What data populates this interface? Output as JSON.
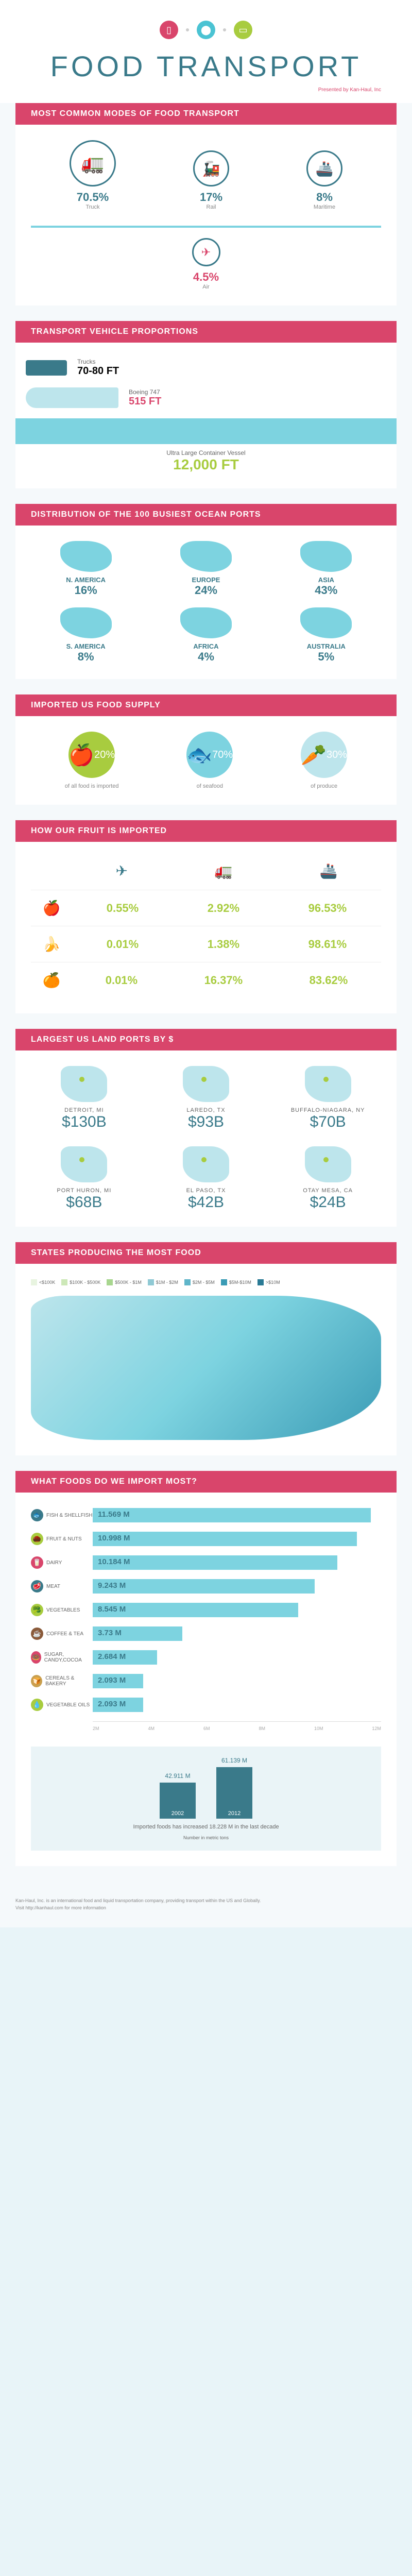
{
  "header": {
    "title": "FOOD TRANSPORT",
    "presented_by": "Presented by Kan-Haul, Inc",
    "icons": [
      "milk",
      "pin",
      "truck"
    ]
  },
  "modes": {
    "title": "MOST COMMON MODES OF FOOD TRANSPORT",
    "items": [
      {
        "pct": "70.5%",
        "label": "Truck",
        "size": "lg",
        "glyph": "🚛"
      },
      {
        "pct": "17%",
        "label": "Rail",
        "size": "md",
        "glyph": "🚂"
      },
      {
        "pct": "8%",
        "label": "Maritime",
        "size": "md",
        "glyph": "🚢"
      }
    ],
    "air": {
      "pct": "4.5%",
      "label": "Air",
      "glyph": "✈"
    }
  },
  "proportions": {
    "title": "TRANSPORT VEHICLE PROPORTIONS",
    "items": [
      {
        "name": "Trucks",
        "value": "70-80 FT",
        "color": "#3a7a8a"
      },
      {
        "name": "Boeing 747",
        "value": "515 FT",
        "color": "#d9456b"
      },
      {
        "name": "Ultra Large Container Vessel",
        "value": "12,000 FT",
        "color": "#a8cc3f"
      }
    ]
  },
  "ocean_ports": {
    "title": "DISTRIBUTION OF THE 100 BUSIEST OCEAN PORTS",
    "regions": [
      {
        "name": "N. AMERICA",
        "pct": "16%"
      },
      {
        "name": "EUROPE",
        "pct": "24%"
      },
      {
        "name": "ASIA",
        "pct": "43%"
      },
      {
        "name": "S. AMERICA",
        "pct": "8%"
      },
      {
        "name": "AFRICA",
        "pct": "4%"
      },
      {
        "name": "AUSTRALIA",
        "pct": "5%"
      }
    ]
  },
  "supply": {
    "title": "IMPORTED US FOOD SUPPLY",
    "items": [
      {
        "pct": "20%",
        "label": "of all food is imported",
        "color": "#a8cc3f",
        "glyph": "🍎"
      },
      {
        "pct": "70%",
        "label": "of seafood",
        "color": "#7dd3e0",
        "glyph": "🐟"
      },
      {
        "pct": "30%",
        "label": "of produce",
        "color": "#bde5ec",
        "glyph": "🥕"
      }
    ]
  },
  "fruit": {
    "title": "HOW OUR FRUIT IS IMPORTED",
    "modes": [
      "✈",
      "🚛",
      "🚢"
    ],
    "rows": [
      {
        "icon": "🍎",
        "values": [
          "0.55%",
          "2.92%",
          "96.53%"
        ]
      },
      {
        "icon": "🍌",
        "values": [
          "0.01%",
          "1.38%",
          "98.61%"
        ]
      },
      {
        "icon": "🍊",
        "values": [
          "0.01%",
          "16.37%",
          "83.62%"
        ]
      }
    ]
  },
  "land_ports": {
    "title": "LARGEST US LAND PORTS BY $",
    "items": [
      {
        "name": "DETROIT, MI",
        "value": "$130B"
      },
      {
        "name": "LAREDO, TX",
        "value": "$93B"
      },
      {
        "name": "BUFFALO-NIAGARA, NY",
        "value": "$70B"
      },
      {
        "name": "PORT HURON, MI",
        "value": "$68B"
      },
      {
        "name": "EL PASO, TX",
        "value": "$42B"
      },
      {
        "name": "OTAY MESA, CA",
        "value": "$24B"
      }
    ]
  },
  "states": {
    "title": "STATES PRODUCING THE MOST FOOD",
    "legend": [
      {
        "label": "<$100K",
        "color": "#e8f4e0"
      },
      {
        "label": "$100K - $500K",
        "color": "#cde8b8"
      },
      {
        "label": "$500K - $1M",
        "color": "#a8d68f"
      },
      {
        "label": "$1M - $2M",
        "color": "#8fc9d4"
      },
      {
        "label": "$2M - $5M",
        "color": "#5fb5c9"
      },
      {
        "label": "$5M-$10M",
        "color": "#3a9bb5"
      },
      {
        "label": ">$10M",
        "color": "#2a7a95"
      }
    ]
  },
  "imports": {
    "title": "WHAT FOODS DO WE IMPORT MOST?",
    "max": 12,
    "items": [
      {
        "name": "FISH & SHELLFISH",
        "value": "11.569 M",
        "num": 11.569,
        "color": "#3a7a8a",
        "glyph": "🐟"
      },
      {
        "name": "FRUIT & NUTS",
        "value": "10.998 M",
        "num": 10.998,
        "color": "#a8cc3f",
        "glyph": "🌰"
      },
      {
        "name": "DAIRY",
        "value": "10.184 M",
        "num": 10.184,
        "color": "#d9456b",
        "glyph": "🥛"
      },
      {
        "name": "MEAT",
        "value": "9.243 M",
        "num": 9.243,
        "color": "#3a7a8a",
        "glyph": "🥩"
      },
      {
        "name": "VEGETABLES",
        "value": "8.545 M",
        "num": 8.545,
        "color": "#a8cc3f",
        "glyph": "🥦"
      },
      {
        "name": "COFFEE & TEA",
        "value": "3.73 M",
        "num": 3.73,
        "color": "#8a5a3a",
        "glyph": "☕"
      },
      {
        "name": "SUGAR, CANDY,COCOA",
        "value": "2.684 M",
        "num": 2.684,
        "color": "#d9456b",
        "glyph": "🍩"
      },
      {
        "name": "CEREALS & BAKERY",
        "value": "2.093 M",
        "num": 2.093,
        "color": "#c9a050",
        "glyph": "🍞"
      },
      {
        "name": "VEGETABLE OILS",
        "value": "2.093 M",
        "num": 2.093,
        "color": "#a8cc3f",
        "glyph": "💧"
      }
    ],
    "axis": [
      "2M",
      "4M",
      "6M",
      "8M",
      "10M",
      "12M"
    ],
    "decade": {
      "bars": [
        {
          "year": "2002",
          "value": "42.911 M",
          "height": 70
        },
        {
          "year": "2012",
          "value": "61.139 M",
          "height": 100
        }
      ],
      "caption": "Imported foods has increased 18.228 M in the last decade",
      "note": "Number in metric tons"
    }
  },
  "footer": {
    "line1": "Kan-Haul, Inc. is an international food and liquid transportation company, providing transport within the US and Globally.",
    "line2": "Visit http://kanhaul.com for more information"
  }
}
